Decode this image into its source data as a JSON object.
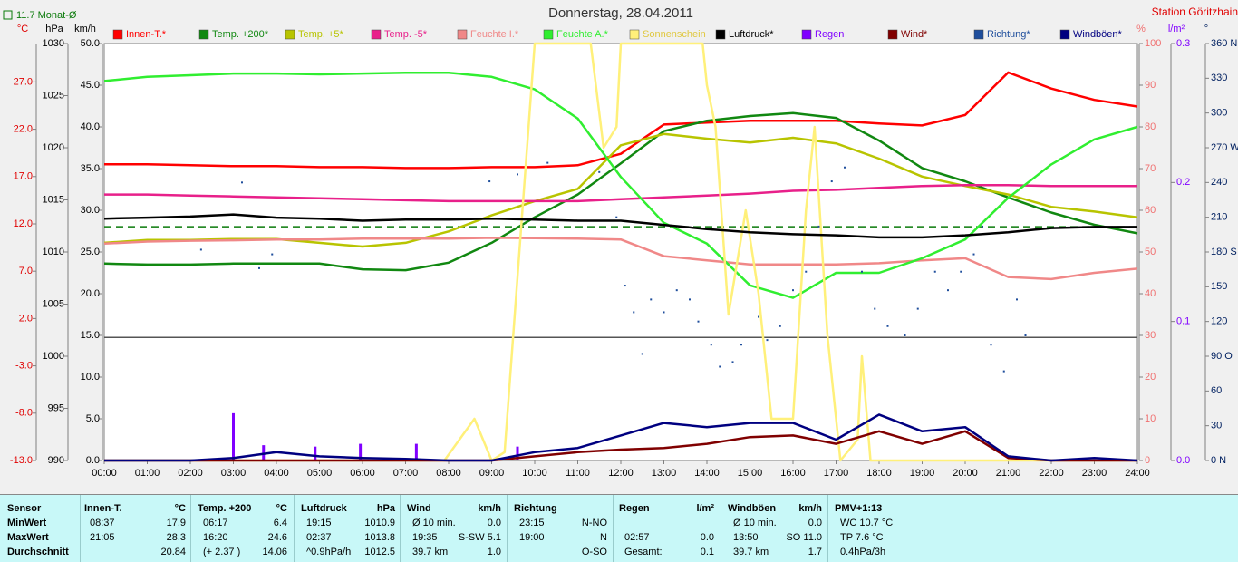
{
  "chart_data": {
    "type": "line",
    "title": "Donnerstag, 28.04.2011",
    "station": "Station Göritzhain",
    "monthly_average": {
      "value": 11.7,
      "label": "11.7 Monat-Ø",
      "color": "#0a7a0a"
    },
    "xlim": [
      0,
      24
    ],
    "xticks": [
      {
        "value": 0,
        "label": "00:00"
      },
      {
        "value": 1,
        "label": "01:00"
      },
      {
        "value": 2,
        "label": "02:00"
      },
      {
        "value": 3,
        "label": "03:00"
      },
      {
        "value": 4,
        "label": "04:00"
      },
      {
        "value": 5,
        "label": "05:00"
      },
      {
        "value": 6,
        "label": "06:00"
      },
      {
        "value": 7,
        "label": "07:00"
      },
      {
        "value": 8,
        "label": "08:00"
      },
      {
        "value": 9,
        "label": "09:00"
      },
      {
        "value": 10,
        "label": "10:00"
      },
      {
        "value": 11,
        "label": "11:00"
      },
      {
        "value": 12,
        "label": "12:00"
      },
      {
        "value": 13,
        "label": "13:00"
      },
      {
        "value": 14,
        "label": "14:00"
      },
      {
        "value": 15,
        "label": "15:00"
      },
      {
        "value": 16,
        "label": "16:00"
      },
      {
        "value": 17,
        "label": "17:00"
      },
      {
        "value": 18,
        "label": "18:00"
      },
      {
        "value": 19,
        "label": "19:00"
      },
      {
        "value": 20,
        "label": "20:00"
      },
      {
        "value": 21,
        "label": "21:00"
      },
      {
        "value": 22,
        "label": "22:00"
      },
      {
        "value": 23,
        "label": "23:00"
      },
      {
        "value": 24,
        "label": "24:00"
      }
    ],
    "axes": [
      {
        "unit": "°C",
        "color": "#e00000",
        "ylim": [
          -13,
          31.06
        ],
        "yticks": [
          {
            "value": -13,
            "label": "-13.0"
          },
          {
            "value": -8,
            "label": "-8.0"
          },
          {
            "value": -3,
            "label": "-3.0"
          },
          {
            "value": 2,
            "label": "2.0"
          },
          {
            "value": 7,
            "label": "7.0"
          },
          {
            "value": 12,
            "label": "12.0"
          },
          {
            "value": 17,
            "label": "17.0"
          },
          {
            "value": 22,
            "label": "22.0"
          },
          {
            "value": 27,
            "label": "27.0"
          }
        ]
      },
      {
        "unit": "hPa",
        "color": "#000000",
        "ylim": [
          990,
          1030
        ],
        "yticks": [
          990,
          995,
          1000,
          1005,
          1010,
          1015,
          1020,
          1025,
          1030
        ]
      },
      {
        "unit": "km/h",
        "color": "#000000",
        "ylim": [
          0,
          50
        ],
        "yticks": [
          {
            "value": 0,
            "label": "0.0"
          },
          {
            "value": 5,
            "label": "5.0"
          },
          {
            "value": 10,
            "label": "10.0"
          },
          {
            "value": 15,
            "label": "15.0"
          },
          {
            "value": 20,
            "label": "20.0"
          },
          {
            "value": 25,
            "label": "25.0"
          },
          {
            "value": 30,
            "label": "30.0"
          },
          {
            "value": 35,
            "label": "35.0"
          },
          {
            "value": 40,
            "label": "40.0"
          },
          {
            "value": 45,
            "label": "45.0"
          },
          {
            "value": 50,
            "label": "50.0"
          }
        ]
      },
      {
        "unit": "%",
        "color": "#f07070",
        "ylim": [
          0,
          100
        ],
        "yticks": [
          0,
          10,
          20,
          30,
          40,
          50,
          60,
          70,
          80,
          90,
          100
        ]
      },
      {
        "unit": "l/m²",
        "color": "#8000ff",
        "ylim": [
          0,
          0.3
        ],
        "yticks": [
          {
            "value": 0,
            "label": "0.0"
          },
          0.1,
          0.2,
          0.3
        ]
      },
      {
        "unit": "°",
        "color": "#002060",
        "ylim": [
          0,
          360
        ],
        "yticks": [
          {
            "value": 0,
            "label": "0 N"
          },
          30,
          60,
          {
            "value": 90,
            "label": "90 O"
          },
          120,
          150,
          {
            "value": 180,
            "label": "180 S"
          },
          210,
          240,
          {
            "value": 270,
            "label": "270 W"
          },
          300,
          330,
          {
            "value": 360,
            "label": "360 N"
          }
        ]
      }
    ],
    "x": [
      0,
      1,
      2,
      3,
      4,
      5,
      6,
      7,
      8,
      9,
      10,
      11,
      12,
      13,
      14,
      15,
      16,
      17,
      18,
      19,
      20,
      21,
      22,
      23,
      24
    ],
    "series": [
      {
        "name": "Innen-T.*",
        "color": "#ff0000",
        "axis": 0,
        "values": [
          18.3,
          18.3,
          18.2,
          18.1,
          18.1,
          18.0,
          18.0,
          17.9,
          17.9,
          18.0,
          18.0,
          18.2,
          19.4,
          22.5,
          22.7,
          22.9,
          22.9,
          22.9,
          22.6,
          22.4,
          23.5,
          28.0,
          26.3,
          25.1,
          24.4
        ]
      },
      {
        "name": "Temp. +200*",
        "color": "#118811",
        "axis": 0,
        "values": [
          7.8,
          7.7,
          7.7,
          7.8,
          7.8,
          7.8,
          7.2,
          7.1,
          7.9,
          10.0,
          12.7,
          15.1,
          18.4,
          21.8,
          22.9,
          23.4,
          23.7,
          23.2,
          20.8,
          17.9,
          16.5,
          14.8,
          13.2,
          11.9,
          11.0
        ]
      },
      {
        "name": "Temp. +5*",
        "color": "#b8c400",
        "axis": 0,
        "values": [
          10.0,
          10.3,
          10.3,
          10.4,
          10.4,
          10.0,
          9.6,
          10.0,
          11.2,
          12.9,
          14.4,
          15.7,
          20.3,
          21.5,
          21.0,
          20.6,
          21.1,
          20.5,
          18.9,
          17.0,
          16.0,
          15.1,
          13.8,
          13.3,
          12.7
        ]
      },
      {
        "name": "Temp. -5*",
        "color": "#e8208a",
        "axis": 0,
        "values": [
          15.1,
          15.1,
          15.0,
          14.9,
          14.8,
          14.7,
          14.6,
          14.5,
          14.4,
          14.4,
          14.4,
          14.4,
          14.6,
          14.8,
          15.0,
          15.2,
          15.5,
          15.6,
          15.8,
          16.0,
          16.1,
          16.1,
          16.0,
          16.0,
          16.0
        ]
      },
      {
        "name": "Feuchte I.*",
        "color": "#f08888",
        "axis": 3,
        "values": [
          52,
          52.5,
          52.7,
          52.8,
          53,
          53,
          53.2,
          53.2,
          53.2,
          53.4,
          53.3,
          53.2,
          53,
          49,
          48,
          47,
          47,
          47,
          47.3,
          48,
          48.5,
          44,
          43.5,
          45,
          46
        ]
      },
      {
        "name": "Feuchte A.*",
        "color": "#30ee30",
        "axis": 3,
        "values": [
          91,
          92,
          92.4,
          92.8,
          92.8,
          92.6,
          92.8,
          93,
          93,
          92,
          89,
          82,
          68,
          57,
          52,
          42,
          39,
          45,
          45,
          48.5,
          53,
          63,
          71,
          77,
          80
        ]
      },
      {
        "name": "Sonnenschein",
        "color": "#fff07a",
        "axis": 3,
        "x": [
          0,
          7.9,
          8.6,
          9.0,
          9.3,
          10.0,
          11.3,
          11.6,
          11.9,
          12.0,
          13.9,
          14.0,
          14.2,
          14.5,
          14.9,
          15.2,
          15.5,
          16.0,
          16.3,
          16.5,
          16.8,
          17.1,
          17.5,
          17.6,
          17.8,
          24
        ],
        "values": [
          0,
          0,
          10,
          0,
          2,
          100,
          100,
          75,
          80,
          100,
          100,
          90,
          80,
          35,
          60,
          40,
          10,
          10,
          60,
          80,
          30,
          0,
          5,
          25,
          0,
          0
        ]
      },
      {
        "name": "Luftdruck*",
        "color": "#000000",
        "axis": 1,
        "values": [
          1013.2,
          1013.3,
          1013.4,
          1013.6,
          1013.3,
          1013.2,
          1013.0,
          1013.1,
          1013.1,
          1013.2,
          1013.1,
          1013.0,
          1013.0,
          1012.6,
          1012.2,
          1011.9,
          1011.7,
          1011.6,
          1011.4,
          1011.4,
          1011.6,
          1011.9,
          1012.3,
          1012.4,
          1012.4
        ]
      },
      {
        "name": "Regen",
        "color": "#8000ff",
        "axis": 4,
        "type": "bar",
        "x": [
          3.0,
          3.7,
          4.9,
          5.95,
          7.25,
          9.6
        ],
        "values": [
          0.034,
          0.011,
          0.01,
          0.012,
          0.012,
          0.01
        ]
      },
      {
        "name": "Wind*",
        "color": "#800000",
        "axis": 2,
        "values": [
          0,
          0,
          0,
          0,
          0,
          0,
          0,
          0,
          0,
          0,
          0.5,
          1.0,
          1.3,
          1.5,
          2.0,
          2.8,
          3.0,
          2.0,
          3.5,
          2.0,
          3.5,
          0.3,
          0,
          0,
          0
        ]
      },
      {
        "name": "Richtung*",
        "color": "#1f4e9c",
        "axis": 5,
        "type": "scatter",
        "x": [
          2.25,
          3.2,
          3.6,
          3.9,
          8.95,
          9.6,
          10.3,
          11.5,
          11.9,
          12.1,
          12.3,
          12.5,
          12.7,
          13.0,
          13.3,
          13.6,
          13.8,
          14.1,
          14.3,
          14.6,
          14.8,
          15.2,
          15.4,
          15.7,
          16.0,
          16.3,
          16.6,
          16.9,
          17.2,
          17.6,
          17.9,
          18.2,
          18.6,
          18.9,
          19.3,
          19.6,
          19.9,
          20.2,
          20.4,
          20.6,
          20.9,
          21.2,
          21.4
        ],
        "values": [
          182,
          240,
          166,
          178,
          241,
          247,
          257,
          249,
          210,
          151,
          128,
          92,
          139,
          128,
          147,
          139,
          120,
          100,
          81,
          85,
          100,
          124,
          104,
          116,
          147,
          163,
          202,
          241,
          253,
          163,
          131,
          116,
          108,
          131,
          163,
          147,
          163,
          178,
          202,
          100,
          77,
          139,
          108
        ]
      },
      {
        "name": "Windböen*",
        "color": "#000080",
        "axis": 2,
        "values": [
          0,
          0,
          0,
          0.3,
          1.0,
          0.5,
          0.3,
          0.2,
          0,
          0,
          1.0,
          1.5,
          3.0,
          4.5,
          4.0,
          4.5,
          4.5,
          2.5,
          5.5,
          3.5,
          4.0,
          0.5,
          0,
          0.3,
          0
        ]
      }
    ]
  },
  "stats": {
    "row_header": "Sensor",
    "row_labels": [
      "MinWert",
      "MaxWert",
      "Durchschnitt"
    ],
    "blocks": [
      {
        "name": "Innen-T.",
        "unit": "°C",
        "rows": [
          [
            "08:37",
            "17.9"
          ],
          [
            "21:05",
            "28.3"
          ],
          [
            "20.84"
          ]
        ]
      },
      {
        "name": "Temp. +200",
        "unit": "°C",
        "rows": [
          [
            "06:17",
            "6.4"
          ],
          [
            "16:20",
            "24.6"
          ],
          [
            "(+ 2.37 )",
            "14.06"
          ]
        ]
      },
      {
        "name": "Luftdruck",
        "unit": "hPa",
        "rows": [
          [
            "19:15",
            "1010.9"
          ],
          [
            "02:37",
            "1013.8"
          ],
          [
            "^0.9hPa/h",
            "1012.5"
          ]
        ]
      },
      {
        "name": "Wind",
        "unit": "km/h",
        "rows": [
          [
            "Ø 10 min.",
            "0.0"
          ],
          [
            "19:35",
            "S-SW 5.1"
          ],
          [
            "39.7 km",
            "1.0"
          ]
        ]
      },
      {
        "name": "Richtung",
        "rows": [
          [
            "23:15",
            "N-NO"
          ],
          [
            "19:00",
            "N"
          ],
          [
            "O-SO"
          ]
        ]
      },
      {
        "name": "Regen",
        "unit": "l/m²",
        "rows": [
          [],
          [
            "02:57",
            "0.0"
          ],
          [
            "Gesamt:",
            "0.1"
          ]
        ]
      },
      {
        "name": "Windböen",
        "unit": "km/h",
        "rows": [
          [
            "Ø 10 min.",
            "0.0"
          ],
          [
            "13:50",
            "SO 11.0"
          ],
          [
            "39.7 km",
            "1.7"
          ]
        ]
      },
      {
        "name": "PMV+1:13",
        "rows": [
          [
            "WC 10.7 °C"
          ],
          [
            "TP 7.6 °C"
          ],
          [
            "0.4hPa/3h"
          ]
        ]
      }
    ]
  }
}
